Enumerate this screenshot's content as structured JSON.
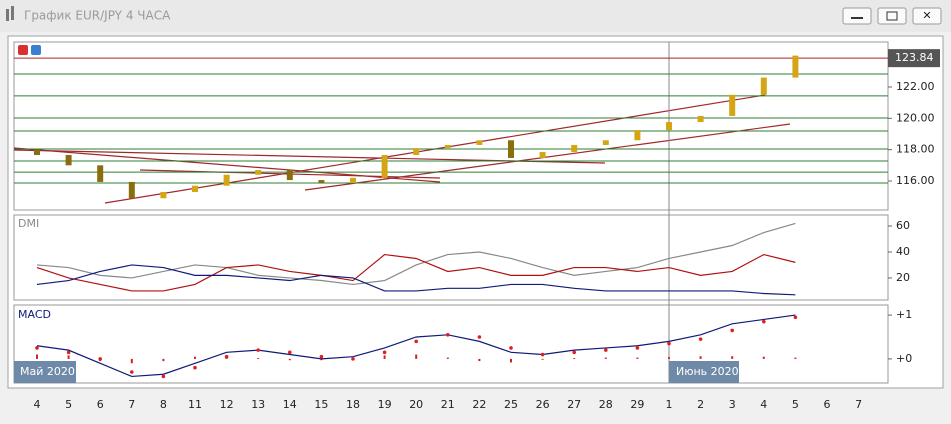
{
  "window": {
    "title": "График EUR/JPY  4 ЧАСА"
  },
  "periods": [
    "Май 2020",
    "Июнь 2020"
  ],
  "chart_data": [
    {
      "type": "candlestick",
      "categories": [
        "4",
        "5",
        "6",
        "7",
        "8",
        "11",
        "12",
        "13",
        "14",
        "15",
        "18",
        "19",
        "20",
        "21",
        "22",
        "25",
        "26",
        "27",
        "28",
        "29",
        "1",
        "2",
        "3",
        "4",
        "5",
        "6",
        "7"
      ],
      "open": [
        118.0,
        117.66,
        117.0,
        115.94,
        114.9,
        115.3,
        115.7,
        116.4,
        116.7,
        116.06,
        115.87,
        116.2,
        117.66,
        118.1,
        118.3,
        118.6,
        117.47,
        117.85,
        118.3,
        118.6,
        119.25,
        119.76,
        120.15,
        121.5,
        122.6,
        null,
        null
      ],
      "close": [
        117.66,
        117.0,
        115.94,
        114.9,
        115.3,
        115.7,
        116.4,
        116.7,
        116.06,
        115.87,
        116.2,
        117.66,
        118.1,
        118.3,
        118.6,
        117.47,
        117.85,
        118.3,
        118.6,
        119.25,
        119.76,
        120.15,
        121.5,
        122.6,
        124.0,
        null,
        null
      ],
      "up_color": "#d4a514",
      "down_color": "#8a6d0c",
      "ylim": [
        114.15,
        124.87
      ],
      "yticks": [
        {
          "value": 116,
          "label": "116.00"
        },
        {
          "value": 118,
          "label": "118.00"
        },
        {
          "value": 120,
          "label": "120.00"
        },
        {
          "value": 122,
          "label": "122.00"
        }
      ],
      "levels": [
        122.83,
        121.43,
        120.02,
        119.19,
        118.04,
        117.28,
        116.57,
        115.87
      ],
      "level_color": "#2e7d32",
      "last_price": {
        "value": 123.84,
        "label": "123.84"
      },
      "last_color": "#b22222"
    },
    {
      "type": "line",
      "title": "DMI",
      "ylim": [
        3,
        68.5
      ],
      "yticks": [
        20,
        40,
        60
      ],
      "series": [
        {
          "color": "#888888",
          "values": [
            30,
            28,
            22,
            20,
            25,
            30,
            28,
            22,
            20,
            18,
            15,
            18,
            30,
            38,
            40,
            35,
            28,
            22,
            25,
            28,
            35,
            40,
            45,
            55,
            62,
            null,
            null
          ]
        },
        {
          "color": "#b01010",
          "values": [
            28,
            20,
            15,
            10,
            10,
            15,
            28,
            30,
            25,
            22,
            18,
            38,
            35,
            25,
            28,
            22,
            22,
            28,
            28,
            25,
            28,
            22,
            25,
            38,
            32,
            null,
            null
          ]
        },
        {
          "color": "#101a7a",
          "values": [
            15,
            18,
            25,
            30,
            28,
            22,
            22,
            20,
            18,
            22,
            20,
            10,
            10,
            12,
            12,
            15,
            15,
            12,
            10,
            10,
            10,
            10,
            10,
            8,
            7,
            null,
            null
          ]
        }
      ]
    },
    {
      "type": "line",
      "title": "MACD",
      "ylim": [
        -0.55,
        1.23
      ],
      "yticks": [
        {
          "value": 0,
          "label": "+0"
        },
        {
          "value": 1,
          "label": "+1"
        }
      ],
      "series": [
        {
          "style": "bar",
          "color": "#d02020",
          "values": [
            0.1,
            0.08,
            -0.05,
            -0.1,
            -0.05,
            0.05,
            0.05,
            0.02,
            -0.03,
            -0.03,
            0.02,
            0.08,
            0.1,
            0.03,
            -0.05,
            -0.08,
            -0.02,
            0.02,
            0.03,
            0.03,
            0.04,
            0.06,
            0.06,
            0.05,
            0.03,
            null,
            null
          ]
        },
        {
          "style": "line",
          "color": "#101a7a",
          "values": [
            0.3,
            0.2,
            -0.1,
            -0.4,
            -0.35,
            -0.1,
            0.15,
            0.2,
            0.1,
            0.0,
            0.05,
            0.25,
            0.5,
            0.55,
            0.4,
            0.15,
            0.1,
            0.2,
            0.25,
            0.3,
            0.4,
            0.55,
            0.8,
            0.9,
            1.0,
            null,
            null
          ]
        },
        {
          "style": "dots",
          "color": "#e02020",
          "values": [
            0.25,
            0.15,
            0.0,
            -0.3,
            -0.4,
            -0.2,
            0.05,
            0.2,
            0.15,
            0.05,
            0.0,
            0.15,
            0.4,
            0.55,
            0.5,
            0.25,
            0.1,
            0.15,
            0.2,
            0.25,
            0.35,
            0.45,
            0.65,
            0.85,
            0.95,
            null,
            null
          ]
        }
      ]
    }
  ]
}
